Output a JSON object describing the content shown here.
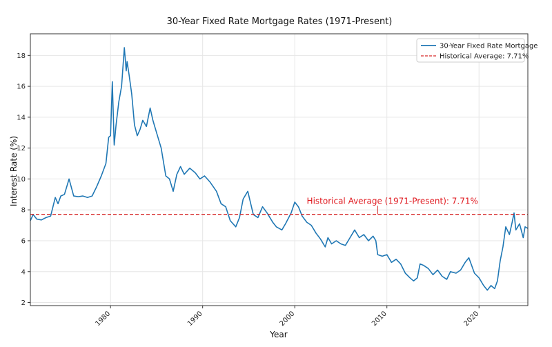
{
  "chart_data": {
    "type": "line",
    "title": "30-Year Fixed Rate Mortgage Rates (1971-Present)",
    "xlabel": "Year",
    "ylabel": "Interest Rate (%)",
    "xlim": [
      1971.3,
      2025.3
    ],
    "ylim": [
      1.8,
      19.4
    ],
    "x_ticks": [
      1980,
      1990,
      2000,
      2010,
      2020
    ],
    "x_tick_labels": [
      "1980",
      "1990",
      "2000",
      "2010",
      "2020"
    ],
    "y_ticks": [
      2,
      4,
      6,
      8,
      10,
      12,
      14,
      16,
      18
    ],
    "y_tick_labels": [
      "2",
      "4",
      "6",
      "8",
      "10",
      "12",
      "14",
      "16",
      "18"
    ],
    "grid": true,
    "legend": {
      "position": "top-right",
      "entries": [
        "30-Year Fixed Rate Mortgage",
        "Historical Average: 7.71%"
      ]
    },
    "series": [
      {
        "name": "30-Year Fixed Rate Mortgage",
        "color": "#1f77b4",
        "style": "solid",
        "x": [
          1971.3,
          1971.6,
          1972.0,
          1972.5,
          1973.0,
          1973.5,
          1974.0,
          1974.3,
          1974.6,
          1975.0,
          1975.5,
          1976.0,
          1976.5,
          1977.0,
          1977.5,
          1978.0,
          1978.5,
          1979.0,
          1979.5,
          1979.8,
          1980.0,
          1980.2,
          1980.4,
          1980.6,
          1980.9,
          1981.2,
          1981.5,
          1981.7,
          1981.8,
          1982.0,
          1982.3,
          1982.6,
          1982.9,
          1983.2,
          1983.5,
          1983.9,
          1984.3,
          1984.6,
          1985.0,
          1985.5,
          1986.0,
          1986.4,
          1986.8,
          1987.2,
          1987.6,
          1988.0,
          1988.6,
          1989.2,
          1989.7,
          1990.2,
          1990.8,
          1991.5,
          1992.0,
          1992.5,
          1993.0,
          1993.6,
          1994.0,
          1994.4,
          1994.9,
          1995.5,
          1996.0,
          1996.5,
          1997.0,
          1997.6,
          1998.0,
          1998.6,
          1999.0,
          1999.6,
          2000.0,
          2000.4,
          2000.8,
          2001.3,
          2001.8,
          2002.3,
          2002.8,
          2003.3,
          2003.6,
          2004.0,
          2004.5,
          2005.0,
          2005.5,
          2006.0,
          2006.5,
          2007.0,
          2007.5,
          2008.0,
          2008.5,
          2008.8,
          2009.0,
          2009.5,
          2010.0,
          2010.5,
          2011.0,
          2011.5,
          2012.0,
          2012.5,
          2012.9,
          2013.3,
          2013.6,
          2014.0,
          2014.5,
          2015.0,
          2015.5,
          2016.0,
          2016.5,
          2016.9,
          2017.5,
          2018.0,
          2018.5,
          2018.9,
          2019.5,
          2020.0,
          2020.5,
          2020.9,
          2021.3,
          2021.7,
          2022.0,
          2022.3,
          2022.6,
          2022.9,
          2023.3,
          2023.6,
          2023.8,
          2024.0,
          2024.4,
          2024.8,
          2025.0,
          2025.3
        ],
        "values": [
          7.3,
          7.7,
          7.4,
          7.35,
          7.5,
          7.6,
          8.8,
          8.4,
          8.9,
          9.0,
          10.0,
          8.9,
          8.85,
          8.9,
          8.8,
          8.9,
          9.5,
          10.2,
          11.0,
          12.7,
          12.8,
          16.3,
          12.2,
          13.5,
          15.0,
          16.0,
          18.5,
          17.0,
          17.6,
          16.8,
          15.5,
          13.5,
          12.8,
          13.2,
          13.8,
          13.4,
          14.6,
          13.8,
          13.0,
          12.0,
          10.2,
          10.0,
          9.2,
          10.3,
          10.8,
          10.3,
          10.7,
          10.4,
          10.0,
          10.2,
          9.8,
          9.2,
          8.4,
          8.2,
          7.3,
          6.9,
          7.5,
          8.7,
          9.2,
          7.7,
          7.5,
          8.2,
          7.8,
          7.2,
          6.9,
          6.7,
          7.1,
          7.8,
          8.5,
          8.2,
          7.6,
          7.2,
          7.0,
          6.5,
          6.1,
          5.6,
          6.2,
          5.8,
          6.0,
          5.8,
          5.7,
          6.2,
          6.7,
          6.2,
          6.4,
          6.0,
          6.3,
          6.0,
          5.1,
          5.0,
          5.1,
          4.6,
          4.8,
          4.5,
          3.9,
          3.6,
          3.4,
          3.6,
          4.5,
          4.4,
          4.2,
          3.8,
          4.1,
          3.7,
          3.5,
          4.0,
          3.9,
          4.1,
          4.6,
          4.9,
          3.9,
          3.6,
          3.1,
          2.8,
          3.1,
          2.9,
          3.4,
          4.7,
          5.6,
          6.9,
          6.4,
          7.2,
          7.8,
          6.7,
          7.1,
          6.2,
          6.9,
          6.8
        ],
        "y_left_edge_values": [
          7.1,
          7.7,
          7.55,
          7.4
        ]
      },
      {
        "name": "Historical Average: 7.71%",
        "color": "#d62728",
        "style": "dashed",
        "value": 7.71
      }
    ],
    "annotations": [
      {
        "text": "Historical Average (1971-Present): 7.71%",
        "x": 2001.3,
        "y": 8.4,
        "color": "#d62728",
        "arrow_to": {
          "x": 2009.0,
          "y": 7.71
        }
      }
    ]
  }
}
